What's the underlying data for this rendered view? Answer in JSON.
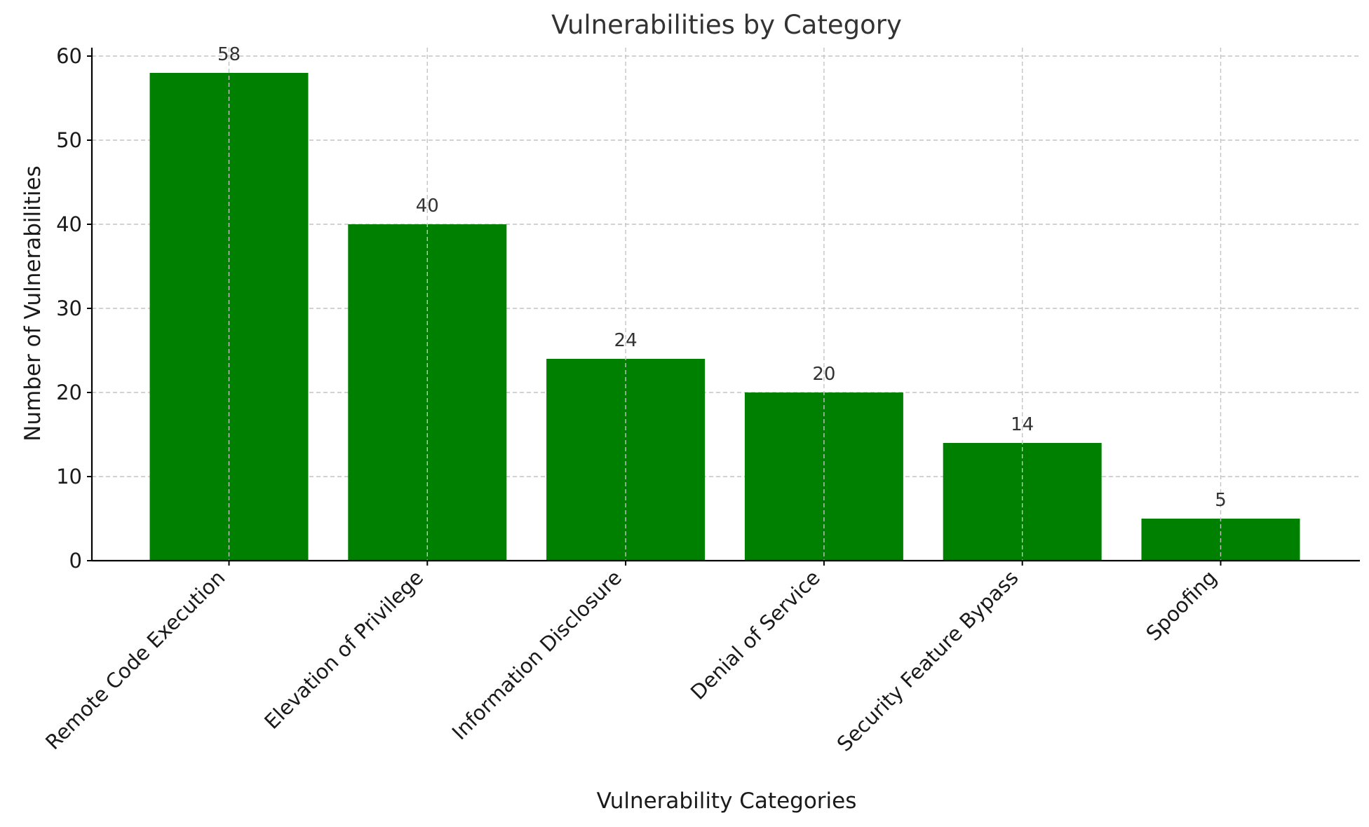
{
  "chart_data": {
    "type": "bar",
    "title": "Vulnerabilities by Category",
    "xlabel": "Vulnerability Categories",
    "ylabel": "Number of Vulnerabilities",
    "categories": [
      "Remote Code Execution",
      "Elevation of Privilege",
      "Information Disclosure",
      "Denial of Service",
      "Security Feature Bypass",
      "Spoofing"
    ],
    "values": [
      58,
      40,
      24,
      20,
      14,
      5
    ],
    "data_labels": [
      "58",
      "40",
      "24",
      "20",
      "14",
      "5"
    ],
    "ylim": [
      0,
      61
    ],
    "yticks": [
      0,
      10,
      20,
      30,
      40,
      50,
      60
    ],
    "ytick_labels": [
      "0",
      "10",
      "20",
      "30",
      "40",
      "50",
      "60"
    ],
    "grid": true,
    "bar_color": "#008000"
  }
}
